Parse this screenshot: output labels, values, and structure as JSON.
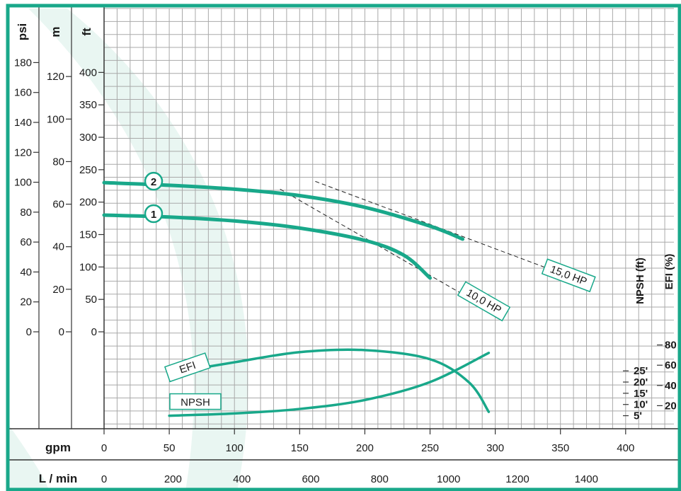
{
  "chart_data": {
    "type": "line",
    "units": {
      "psi": "psi",
      "m": "m",
      "ft": "ft",
      "gpm": "gpm",
      "lmin": "L / min",
      "npsh": "NPSH (ft)",
      "efi": "EFI (%)"
    },
    "x": {
      "label": "gpm",
      "range": [
        0,
        430
      ],
      "ticks": [
        "0",
        "50",
        "100",
        "150",
        "200",
        "250",
        "300",
        "350",
        "400"
      ]
    },
    "x2": {
      "label": "L / min",
      "ticks": [
        "0",
        "200",
        "400",
        "600",
        "800",
        "1000",
        "1200",
        "1400"
      ]
    },
    "y_ft": {
      "label": "ft",
      "range": [
        0,
        450
      ],
      "ticks": [
        "0",
        "50",
        "100",
        "150",
        "200",
        "250",
        "300",
        "350",
        "400"
      ]
    },
    "y_m": {
      "label": "m",
      "ticks": [
        "0",
        "20",
        "40",
        "60",
        "80",
        "100",
        "120"
      ]
    },
    "y_psi": {
      "label": "psi",
      "ticks": [
        "0",
        "20",
        "40",
        "60",
        "80",
        "100",
        "120",
        "140",
        "160",
        "180"
      ]
    },
    "npsh_ticks": [
      "5'",
      "10'",
      "15'",
      "20'",
      "25'"
    ],
    "efi_ticks": [
      "20",
      "40",
      "60",
      "80"
    ],
    "series": [
      {
        "name": "2",
        "color": "#19a88a",
        "points": [
          [
            0,
            230
          ],
          [
            50,
            226
          ],
          [
            100,
            220
          ],
          [
            150,
            210
          ],
          [
            200,
            192
          ],
          [
            250,
            163
          ],
          [
            275,
            143
          ]
        ]
      },
      {
        "name": "1",
        "color": "#19a88a",
        "points": [
          [
            0,
            180
          ],
          [
            50,
            177
          ],
          [
            100,
            171
          ],
          [
            150,
            160
          ],
          [
            200,
            141
          ],
          [
            230,
            118
          ],
          [
            250,
            83
          ]
        ]
      },
      {
        "name": "EFI",
        "color": "#19a88a",
        "points": [
          [
            50,
            54
          ],
          [
            100,
            65
          ],
          [
            150,
            75
          ],
          [
            200,
            77
          ],
          [
            250,
            68
          ],
          [
            280,
            45
          ],
          [
            295,
            16
          ]
        ]
      },
      {
        "name": "NPSH",
        "color": "#19a88a",
        "points": [
          [
            50,
            5
          ],
          [
            100,
            6
          ],
          [
            150,
            8
          ],
          [
            200,
            12
          ],
          [
            250,
            20
          ],
          [
            295,
            33
          ]
        ]
      }
    ],
    "hp_lines": [
      {
        "label": "15,0 HP",
        "from": [
          162,
          232
        ],
        "to": [
          340,
          98
        ]
      },
      {
        "label": "10,0 HP",
        "from": [
          135,
          220
        ],
        "to": [
          275,
          58
        ]
      }
    ],
    "curve_markers": [
      "1",
      "2"
    ],
    "accent_color": "#19a88a"
  }
}
